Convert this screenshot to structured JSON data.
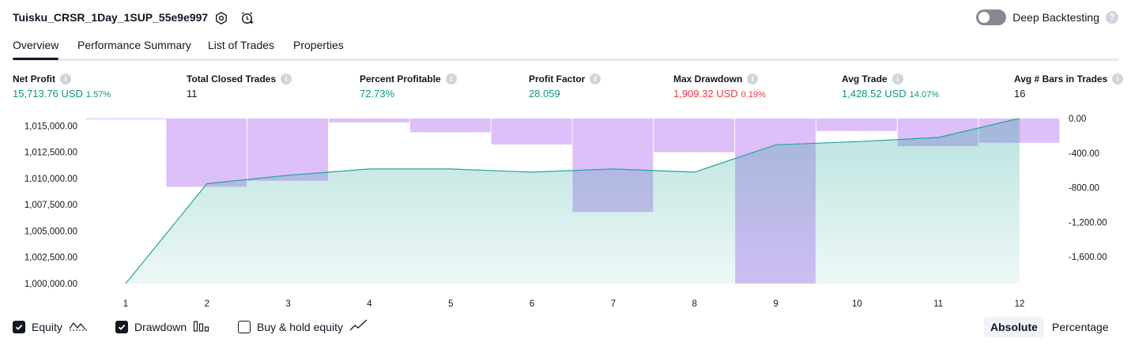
{
  "header": {
    "title": "Tuisku_CRSR_1Day_1SUP_55e9e997",
    "deep_label": "Deep Backtesting",
    "deep_enabled": false
  },
  "tabs": [
    {
      "label": "Overview",
      "active": true
    },
    {
      "label": "Performance Summary",
      "active": false
    },
    {
      "label": "List of Trades",
      "active": false
    },
    {
      "label": "Properties",
      "active": false
    }
  ],
  "metrics": [
    {
      "label": "Net Profit",
      "value": "15,713.76 USD",
      "sub": "1.57%",
      "tone": "pos"
    },
    {
      "label": "Total Closed Trades",
      "value": "11",
      "sub": "",
      "tone": "plain"
    },
    {
      "label": "Percent Profitable",
      "value": "72.73%",
      "sub": "",
      "tone": "pos"
    },
    {
      "label": "Profit Factor",
      "value": "28.059",
      "sub": "",
      "tone": "pos"
    },
    {
      "label": "Max Drawdown",
      "value": "1,909.32 USD",
      "sub": "0.19%",
      "tone": "neg"
    },
    {
      "label": "Avg Trade",
      "value": "1,428.52 USD",
      "sub": "14.07%",
      "tone": "pos"
    },
    {
      "label": "Avg # Bars in Trades",
      "value": "16",
      "sub": "",
      "tone": "plain"
    }
  ],
  "chart_data": {
    "type": "area",
    "x": [
      1,
      2,
      3,
      4,
      5,
      6,
      7,
      8,
      9,
      10,
      11,
      12
    ],
    "left_ticks": [
      "1,015,000.00",
      "1,012,500.00",
      "1,010,000.00",
      "1,007,500.00",
      "1,005,000.00",
      "1,002,500.00",
      "1,000,000.00"
    ],
    "right_ticks": [
      "0.00",
      "-400.00",
      "-800.00",
      "-1,200.00",
      "-1,600.00"
    ],
    "ylim_left": [
      1000000,
      1015700
    ],
    "ylim_right": [
      -1909.32,
      0
    ],
    "series": [
      {
        "name": "Equity",
        "axis": "left",
        "values": [
          1000000,
          1009500,
          1010300,
          1010900,
          1010900,
          1010600,
          1010900,
          1010600,
          1013200,
          1013500,
          1013900,
          1015713.76
        ]
      },
      {
        "name": "Drawdown",
        "axis": "right",
        "values": [
          -5,
          -790,
          -720,
          -45,
          -160,
          -300,
          -1080,
          -390,
          -1909.32,
          -145,
          -320,
          -280
        ]
      }
    ],
    "colors": {
      "equity_line": "#26a69a",
      "equity_fill": "#26a69a",
      "drawdown": "#d1a9f7"
    }
  },
  "legend": {
    "items": [
      {
        "label": "Equity",
        "checked": true
      },
      {
        "label": "Drawdown",
        "checked": true
      },
      {
        "label": "Buy & hold equity",
        "checked": false
      }
    ],
    "modes": [
      {
        "label": "Absolute",
        "active": true
      },
      {
        "label": "Percentage",
        "active": false
      }
    ]
  }
}
